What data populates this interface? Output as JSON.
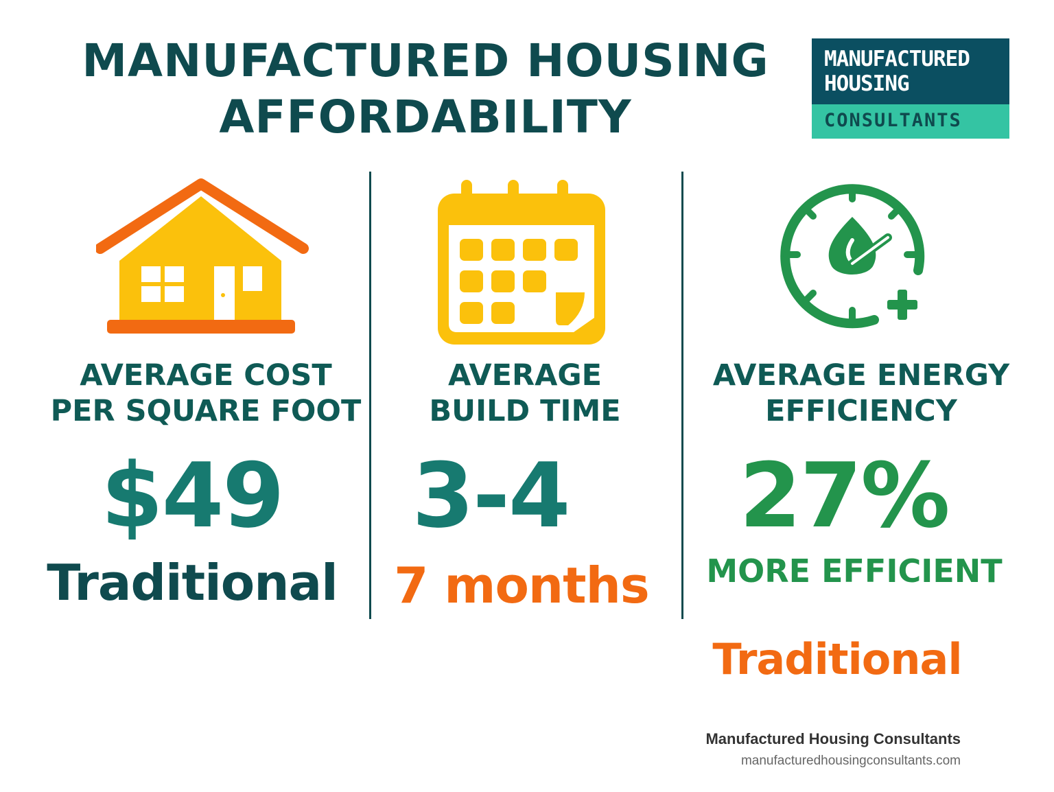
{
  "header": {
    "title_line1": "MANUFACTURED HOUSING",
    "title_line2": "AFFORDABILITY"
  },
  "logo": {
    "line1": "MANUFACTURED",
    "line2": "HOUSING",
    "line3": "CONSULTANTS"
  },
  "columns": [
    {
      "icon": "house-icon",
      "label_line1": "AVERAGE COST",
      "label_line2": "PER SQUARE FOOT",
      "value": "$49",
      "sub": "Traditional"
    },
    {
      "icon": "calendar-icon",
      "label_line1": "AVERAGE",
      "label_line2": "BUILD TIME",
      "value": "3-4",
      "sub": "7 months"
    },
    {
      "icon": "energy-gauge-icon",
      "label_line1": "AVERAGE ENERGY",
      "label_line2": "EFFICIENCY",
      "value": "27%",
      "sub": "MORE EFFICIENT",
      "sub2": "Traditional"
    }
  ],
  "footer": {
    "name": "Manufactured Housing Consultants",
    "url": "manufacturedhousingconsultants.com"
  },
  "colors": {
    "teal_dark": "#0f4a4e",
    "teal": "#177a70",
    "orange": "#f26a12",
    "yellow": "#fbc10c",
    "green": "#23944c"
  }
}
